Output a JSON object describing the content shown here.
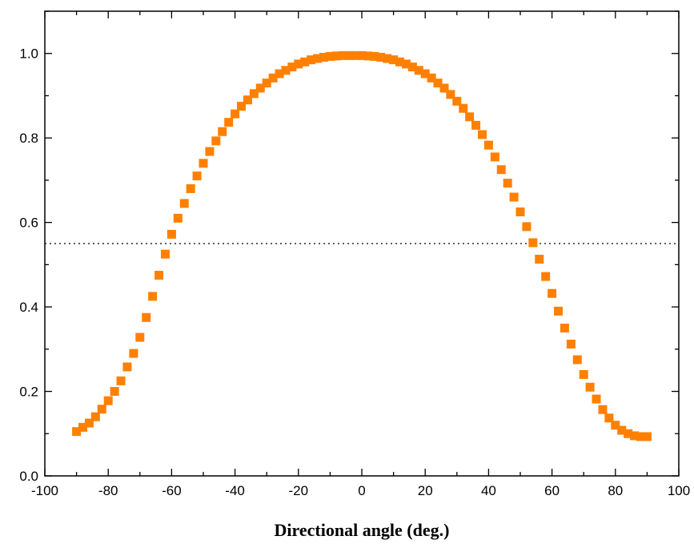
{
  "chart_data": {
    "type": "scatter",
    "title": "",
    "xlabel": "Directional angle (deg.)",
    "ylabel": "",
    "xlim": [
      -100,
      100
    ],
    "ylim": [
      0.0,
      1.1
    ],
    "x_ticks": [
      -100,
      -80,
      -60,
      -40,
      -20,
      0,
      20,
      40,
      60,
      80,
      100
    ],
    "x_tick_labels": [
      "-100",
      "-80",
      "-60",
      "-40",
      "-20",
      "0",
      "20",
      "40",
      "60",
      "80",
      "100"
    ],
    "y_ticks": [
      0.0,
      0.2,
      0.4,
      0.6,
      0.8,
      1.0
    ],
    "y_tick_labels": [
      "0.0",
      "0.2",
      "0.4",
      "0.6",
      "0.8",
      "1.0"
    ],
    "grid": false,
    "legend": "none",
    "marker": "square",
    "marker_color": "#ff8000",
    "reference_line": {
      "y": 0.55,
      "style": "dotted",
      "color": "#000000"
    },
    "series": [
      {
        "x": [
          -90,
          -88,
          -86,
          -84,
          -82,
          -80,
          -78,
          -76,
          -74,
          -72,
          -70,
          -68,
          -66,
          -64,
          -62,
          -60,
          -58,
          -56,
          -54,
          -52,
          -50,
          -48,
          -46,
          -44,
          -42,
          -40,
          -38,
          -36,
          -34,
          -32,
          -30,
          -28,
          -26,
          -24,
          -22,
          -20,
          -18,
          -16,
          -14,
          -12,
          -10,
          -8,
          -6,
          -4,
          -2,
          0,
          2,
          4,
          6,
          8,
          10,
          12,
          14,
          16,
          18,
          20,
          22,
          24,
          26,
          28,
          30,
          32,
          34,
          36,
          38,
          40,
          42,
          44,
          46,
          48,
          50,
          52,
          54,
          56,
          58,
          60,
          62,
          64,
          66,
          68,
          70,
          72,
          74,
          76,
          78,
          80,
          82,
          84,
          86,
          88,
          90
        ],
        "y": [
          0.105,
          0.115,
          0.125,
          0.14,
          0.158,
          0.178,
          0.2,
          0.225,
          0.258,
          0.29,
          0.328,
          0.375,
          0.425,
          0.475,
          0.525,
          0.572,
          0.61,
          0.645,
          0.68,
          0.71,
          0.74,
          0.768,
          0.793,
          0.815,
          0.837,
          0.857,
          0.875,
          0.89,
          0.905,
          0.918,
          0.93,
          0.942,
          0.952,
          0.96,
          0.968,
          0.975,
          0.98,
          0.985,
          0.988,
          0.991,
          0.993,
          0.994,
          0.995,
          0.995,
          0.995,
          0.995,
          0.994,
          0.993,
          0.991,
          0.988,
          0.985,
          0.98,
          0.975,
          0.968,
          0.96,
          0.952,
          0.942,
          0.93,
          0.918,
          0.903,
          0.887,
          0.87,
          0.85,
          0.83,
          0.808,
          0.783,
          0.755,
          0.725,
          0.693,
          0.66,
          0.625,
          0.59,
          0.552,
          0.513,
          0.472,
          0.432,
          0.39,
          0.35,
          0.312,
          0.275,
          0.24,
          0.21,
          0.182,
          0.157,
          0.137,
          0.12,
          0.108,
          0.1,
          0.095,
          0.093,
          0.093
        ]
      }
    ]
  }
}
